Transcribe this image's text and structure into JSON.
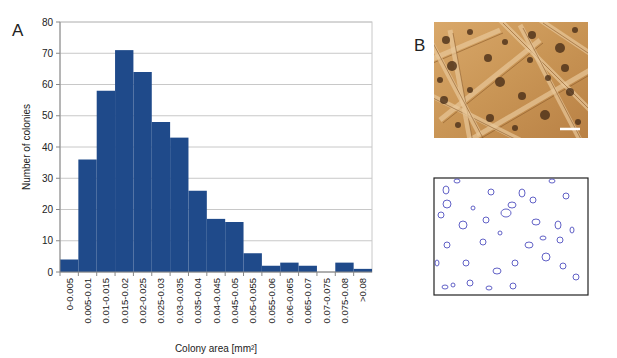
{
  "chart_data": {
    "type": "bar",
    "annotations": [
      "A",
      "B"
    ],
    "x_label": "Colony area [mm²]",
    "y_label": "Number of colonies",
    "categories": [
      "0-0.005",
      "0.005-0.01",
      "0.01-0.015",
      "0.015-0.02",
      "0.02-0.025",
      "0.025-0.03",
      "0.03-0.035",
      "0.035-0.04",
      "0.04-0.045",
      "0.045-0.05",
      "0.05-0.055",
      "0.055-0.06",
      "0.06-0.065",
      "0.065-0.07",
      "0.07-0.075",
      "0.075-0.08",
      ">0.08"
    ],
    "values": [
      4,
      36,
      58,
      71,
      64,
      48,
      43,
      26,
      17,
      16,
      6,
      2,
      3,
      2,
      0,
      3,
      1
    ],
    "color": "#1f4a8a",
    "ylim": [
      0,
      80
    ],
    "yticks": [
      0,
      10,
      20,
      30,
      40,
      50,
      60,
      70,
      80
    ],
    "grid": true
  }
}
